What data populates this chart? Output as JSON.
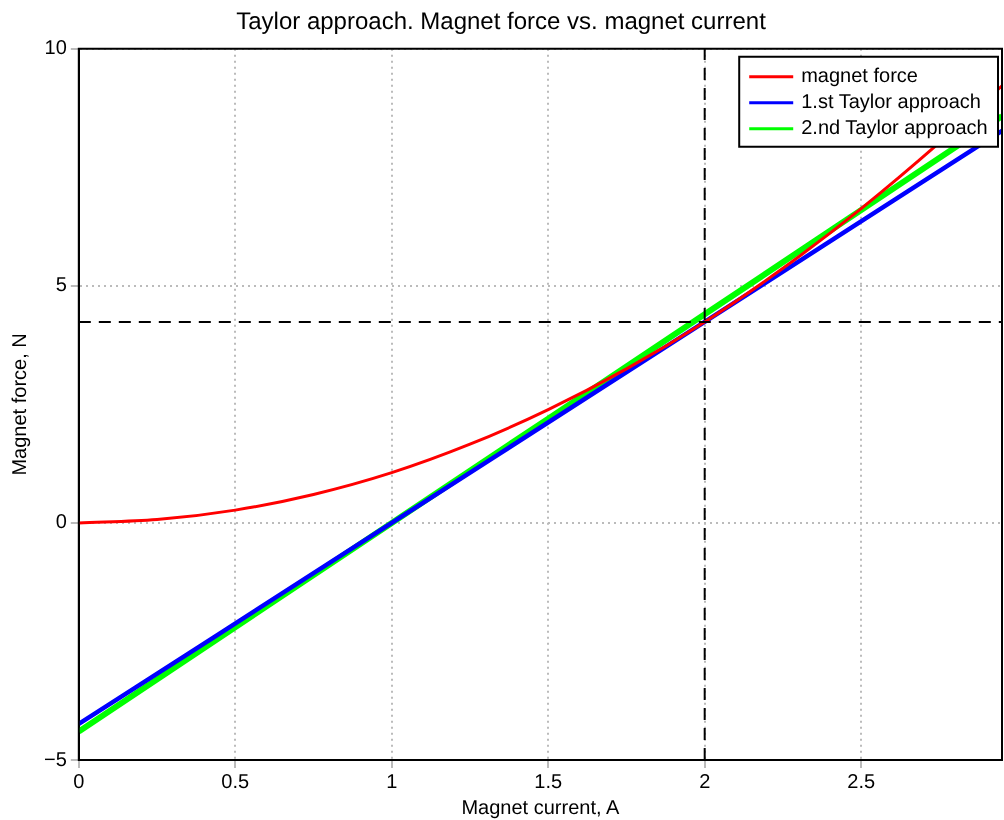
{
  "chart_data": {
    "type": "line",
    "title": "Taylor approach. Magnet force vs. magnet current",
    "xlabel": "Magnet current, A",
    "ylabel": "Magnet force, N",
    "xlim": [
      0,
      2.95
    ],
    "xticks": [
      0,
      0.5,
      1,
      1.5,
      2,
      2.5
    ],
    "ylim": [
      -5,
      10
    ],
    "yticks": [
      -5,
      0,
      5,
      10
    ],
    "grid": true,
    "legend": "top right",
    "line_style": "solid",
    "marker": "none",
    "series": [
      {
        "name": "magnet force",
        "color": "#ff0000",
        "x": [
          0,
          0.25,
          0.5,
          0.75,
          1,
          1.25,
          1.5,
          1.75,
          2,
          2.25,
          2.5,
          2.75,
          2.95
        ],
        "values": [
          0,
          0.07,
          0.27,
          0.6,
          1.06,
          1.66,
          2.39,
          3.25,
          4.24,
          5.37,
          6.63,
          8.02,
          9.22
        ]
      },
      {
        "name": "1.st Taylor approach",
        "color": "#0000ff",
        "x": [
          0,
          1,
          2,
          2.95
        ],
        "values": [
          -4.24,
          0,
          4.24,
          8.27
        ]
      },
      {
        "name": "2.nd Taylor approach",
        "color": "#00ff00",
        "x": [
          0,
          1,
          2,
          2.95
        ],
        "values": [
          -4.4,
          0,
          4.4,
          8.58
        ]
      }
    ],
    "ref_lines": [
      {
        "axis": "x",
        "value": 2,
        "color": "#000000",
        "line_style": "dashed"
      },
      {
        "axis": "y",
        "value": 4.24,
        "color": "#000000",
        "line_style": "dashed"
      }
    ]
  }
}
